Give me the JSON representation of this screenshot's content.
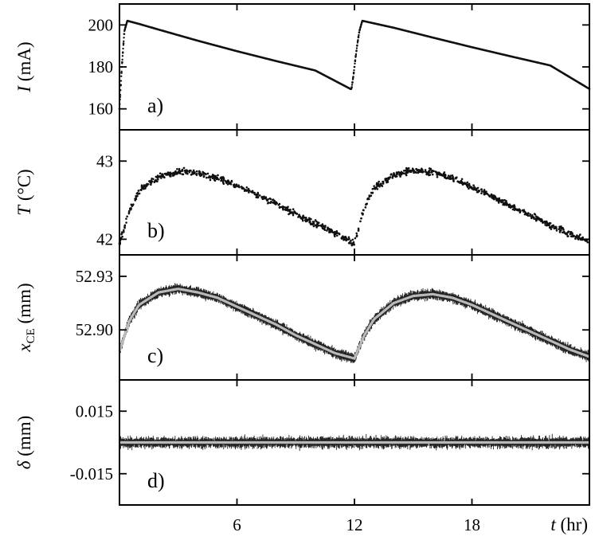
{
  "chart_data": [
    {
      "type": "scatter",
      "panel_label": "a)",
      "ylabel_symbol": "I",
      "ylabel_unit": " (mA)",
      "ylim": [
        150,
        210
      ],
      "yticks": [
        160,
        180,
        200
      ],
      "ytick_labels": [
        "160",
        "180",
        "200"
      ],
      "xlim": [
        0,
        24
      ],
      "series": [
        {
          "x": [
            0,
            0.12,
            0.25,
            0.4,
            1,
            2,
            4,
            6,
            8,
            10,
            11.8,
            11.85,
            11.95,
            12.05,
            12.15,
            12.25,
            12.4,
            14,
            16,
            18,
            20,
            22,
            24
          ],
          "y": [
            160,
            180,
            197,
            202,
            200.5,
            197.8,
            192.5,
            187.5,
            182.8,
            178.3,
            169.5,
            169.5,
            176,
            184,
            191,
            197,
            202,
            198.7,
            194,
            189.4,
            185,
            180.7,
            169.5
          ]
        }
      ]
    },
    {
      "type": "scatter",
      "panel_label": "b)",
      "ylabel_symbol": "T",
      "ylabel_unit": " (°C)",
      "ylim": [
        41.8,
        43.4
      ],
      "yticks": [
        42,
        43
      ],
      "ytick_labels": [
        "42",
        "43"
      ],
      "xlim": [
        0,
        24
      ],
      "series": [
        {
          "x": [
            0,
            0.5,
            1,
            2,
            3,
            4,
            5,
            6,
            7,
            8,
            9,
            10,
            11,
            12,
            12.5,
            13,
            14,
            15,
            16,
            17,
            18,
            19,
            20,
            21,
            22,
            23,
            24
          ],
          "y": [
            41.95,
            42.35,
            42.62,
            42.8,
            42.87,
            42.85,
            42.78,
            42.68,
            42.57,
            42.45,
            42.32,
            42.2,
            42.08,
            41.95,
            42.4,
            42.65,
            42.82,
            42.88,
            42.86,
            42.78,
            42.67,
            42.55,
            42.42,
            42.3,
            42.18,
            42.07,
            41.97
          ]
        }
      ]
    },
    {
      "type": "line",
      "panel_label": "c)",
      "ylabel_symbol": "x",
      "ylabel_sub": "CE",
      "ylabel_unit": " (mm)",
      "ylim": [
        52.872,
        52.942
      ],
      "yticks": [
        52.9,
        52.93
      ],
      "ytick_labels": [
        "52.90",
        "52.93"
      ],
      "xlim": [
        0,
        24
      ],
      "series": [
        {
          "x": [
            0,
            0.5,
            1,
            2,
            3,
            4,
            5,
            6,
            7,
            8,
            9,
            10,
            11,
            12,
            12.5,
            13,
            14,
            15,
            16,
            17,
            18,
            19,
            20,
            21,
            22,
            23,
            24
          ],
          "y": [
            52.888,
            52.905,
            52.914,
            52.921,
            52.923,
            52.921,
            52.918,
            52.913,
            52.908,
            52.903,
            52.897,
            52.892,
            52.887,
            52.884,
            52.897,
            52.906,
            52.915,
            52.919,
            52.92,
            52.918,
            52.914,
            52.909,
            52.904,
            52.899,
            52.894,
            52.889,
            52.885
          ]
        }
      ]
    },
    {
      "type": "line",
      "panel_label": "d)",
      "ylabel_symbol": "δ",
      "ylabel_unit": " (mm)",
      "ylim": [
        -0.03,
        0.03
      ],
      "yticks": [
        -0.015,
        0.015
      ],
      "ytick_labels": [
        "-0.015",
        "0.015"
      ],
      "xlim": [
        0,
        24
      ],
      "xticks": [
        6,
        12,
        18
      ],
      "xtick_labels": [
        "6",
        "12",
        "18"
      ],
      "xlabel_symbol": "t",
      "xlabel_unit": " (hr)",
      "series": [
        {
          "x": [
            0,
            24
          ],
          "y": [
            0,
            0
          ]
        }
      ]
    }
  ]
}
